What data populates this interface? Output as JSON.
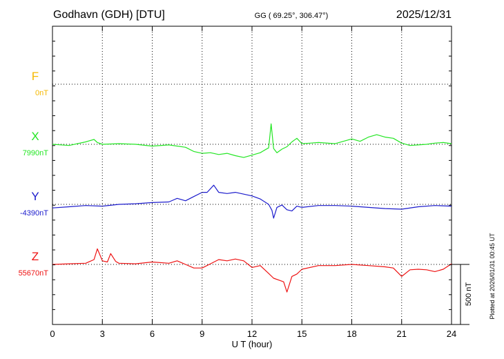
{
  "header": {
    "station": "Godhavn (GDH)  [DTU]",
    "coords": "GG ( 69.25°, 306.47°)",
    "date": "2025/12/31"
  },
  "footer": {
    "xlabel": "U T (hour)",
    "plotted": "Plotted at 2026/01/31 00:45 UT",
    "scale_label": "500 nT"
  },
  "chart_data": {
    "type": "line",
    "x_unit": "hour",
    "xlim": [
      0,
      24
    ],
    "x_ticks": [
      0,
      3,
      6,
      9,
      12,
      15,
      18,
      21,
      24
    ],
    "xlabel": "U T (hour)",
    "scale_bar_nT": 500,
    "grid": "dotted horizontal baselines",
    "channels": [
      {
        "name": "F",
        "baseline_label": "0nT",
        "color": "#f5b800",
        "x": [],
        "values": []
      },
      {
        "name": "X",
        "baseline_label": "7990nT",
        "color": "#22e622",
        "x": [
          0,
          1,
          2,
          2.5,
          2.7,
          3,
          4,
          5,
          6,
          7,
          8,
          8.5,
          9,
          9.5,
          10,
          10.5,
          11,
          11.5,
          12,
          12.5,
          12.8,
          13,
          13.15,
          13.3,
          13.5,
          13.8,
          14.1,
          14.4,
          14.7,
          15,
          15.5,
          16,
          17,
          18,
          18.5,
          19,
          19.5,
          20,
          20.5,
          21,
          21.5,
          22,
          22.5,
          23,
          23.5,
          24
        ],
        "values": [
          0,
          -10,
          20,
          40,
          15,
          0,
          5,
          0,
          -15,
          -5,
          -25,
          -60,
          -75,
          -70,
          -85,
          -75,
          -95,
          -110,
          -90,
          -70,
          -45,
          -30,
          170,
          -35,
          -70,
          -40,
          -20,
          20,
          50,
          5,
          10,
          15,
          5,
          45,
          25,
          60,
          80,
          60,
          50,
          10,
          -10,
          -5,
          0,
          10,
          15,
          5
        ]
      },
      {
        "name": "Y",
        "baseline_label": "-4390nT",
        "color": "#1a1acc",
        "x": [
          0,
          1,
          2,
          3,
          4,
          5,
          6,
          7,
          7.5,
          8,
          8.5,
          9,
          9.3,
          9.7,
          10,
          10.5,
          11,
          11.5,
          12,
          12.5,
          13,
          13.2,
          13.3,
          13.5,
          13.8,
          14.1,
          14.4,
          14.7,
          15,
          16,
          17,
          18,
          19,
          20,
          21,
          22,
          23,
          24
        ],
        "values": [
          -30,
          -20,
          -10,
          -15,
          0,
          5,
          15,
          20,
          50,
          30,
          65,
          100,
          100,
          160,
          100,
          90,
          100,
          85,
          70,
          45,
          0,
          -50,
          -115,
          -25,
          -5,
          -45,
          -55,
          -15,
          -25,
          -10,
          -10,
          -15,
          -25,
          -35,
          -40,
          -20,
          -10,
          -15
        ]
      },
      {
        "name": "Z",
        "baseline_label": "55670nT",
        "color": "#ee1111",
        "x": [
          0,
          1,
          2,
          2.5,
          2.7,
          3,
          3.3,
          3.5,
          3.8,
          4,
          5,
          6,
          7,
          7.5,
          8,
          8.5,
          9,
          9.5,
          10,
          10.5,
          11,
          11.5,
          12,
          12.5,
          13,
          13.3,
          13.6,
          13.9,
          14.1,
          14.4,
          14.7,
          15,
          16,
          17,
          18,
          19,
          20,
          20.5,
          21,
          21.5,
          22,
          22.5,
          23,
          23.5,
          24
        ],
        "values": [
          0,
          5,
          10,
          40,
          130,
          30,
          20,
          90,
          25,
          10,
          5,
          20,
          10,
          30,
          0,
          -30,
          -30,
          5,
          40,
          30,
          45,
          30,
          -25,
          -10,
          -75,
          -115,
          -130,
          -145,
          -230,
          -100,
          -80,
          -40,
          -10,
          -10,
          0,
          -10,
          -20,
          -30,
          -100,
          -45,
          -40,
          -45,
          -60,
          -40,
          5
        ]
      }
    ]
  }
}
